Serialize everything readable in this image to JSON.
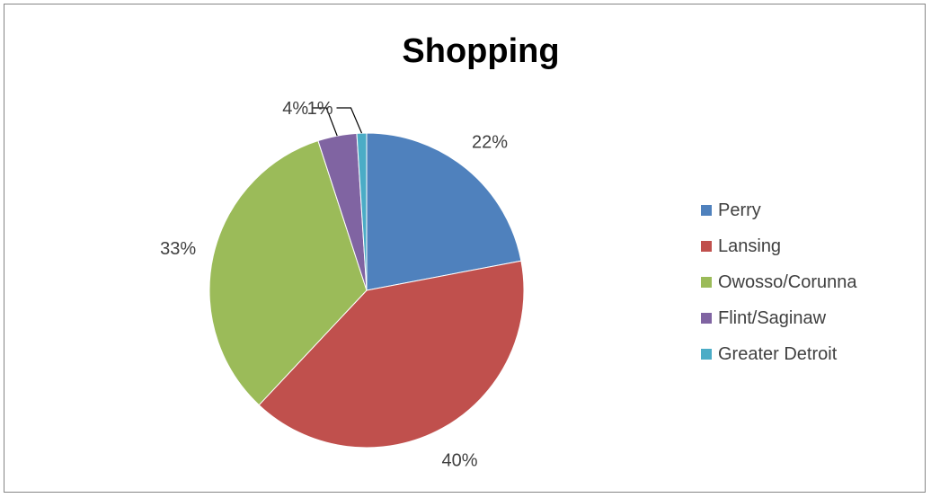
{
  "chart_data": {
    "type": "pie",
    "title": "Shopping",
    "categories": [
      "Perry",
      "Lansing",
      "Owosso/Corunna",
      "Flint/Saginaw",
      "Greater Detroit"
    ],
    "values": [
      22,
      40,
      33,
      4,
      1
    ],
    "data_labels": [
      "22%",
      "40%",
      "33%",
      "4%",
      "1%"
    ],
    "colors": [
      "#4F81BD",
      "#C0504D",
      "#9BBB59",
      "#8064A2",
      "#4BACC6"
    ],
    "legend_position": "right"
  }
}
